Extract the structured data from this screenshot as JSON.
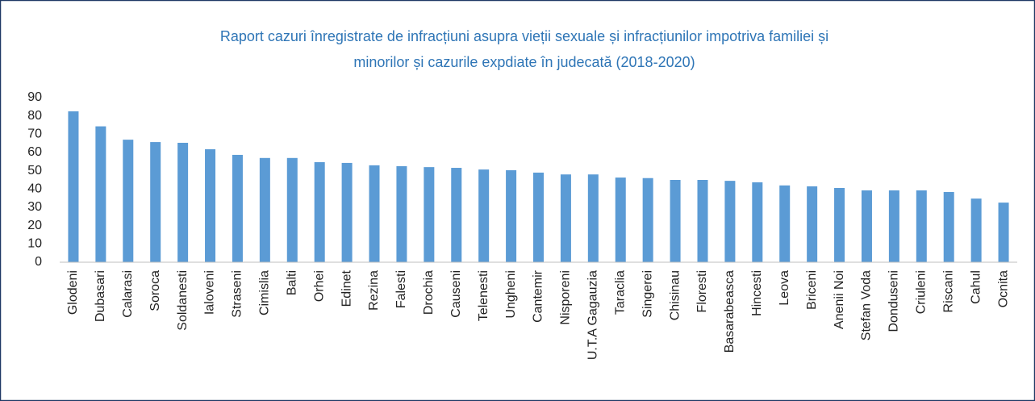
{
  "chart_data": {
    "type": "bar",
    "title": [
      "Raport cazuri înregistrate de infracțiuni asupra vieții sexuale și infracțiunilor impotriva familiei și",
      "minorilor și cazurile expdiate în judecată (2018-2020)"
    ],
    "categories": [
      "Glodeni",
      "Dubasari",
      "Calarasi",
      "Soroca",
      "Soldanesti",
      "Ialoveni",
      "Straseni",
      "Cimislia",
      "Balti",
      "Orhei",
      "Edinet",
      "Rezina",
      "Falesti",
      "Drochia",
      "Causeni",
      "Telenesti",
      "Ungheni",
      "Cantemir",
      "Nisporeni",
      "U.T.A Gagauzia",
      "Taraclia",
      "Singerei",
      "Chisinau",
      "Floresti",
      "Basarabeasca",
      "Hincesti",
      "Leova",
      "Briceni",
      "Anenii Noi",
      "Stefan Voda",
      "Donduseni",
      "Criuleni",
      "Riscani",
      "Cahul",
      "Ocnita"
    ],
    "values": [
      82.5,
      74.3,
      67,
      65.7,
      65.3,
      61.8,
      58.7,
      57,
      57,
      54.7,
      54.3,
      53,
      52.5,
      52,
      51.6,
      50.7,
      50.3,
      49,
      48,
      48,
      46.3,
      46,
      45,
      45,
      44.5,
      43.7,
      42,
      41.5,
      40.6,
      39.3,
      39.3,
      39.3,
      38.4,
      34.8,
      32.6
    ],
    "color": "#5b9bd5",
    "ylim": [
      0,
      90
    ],
    "yticks": [
      0,
      10,
      20,
      30,
      40,
      50,
      60,
      70,
      80,
      90
    ],
    "grid": false
  }
}
